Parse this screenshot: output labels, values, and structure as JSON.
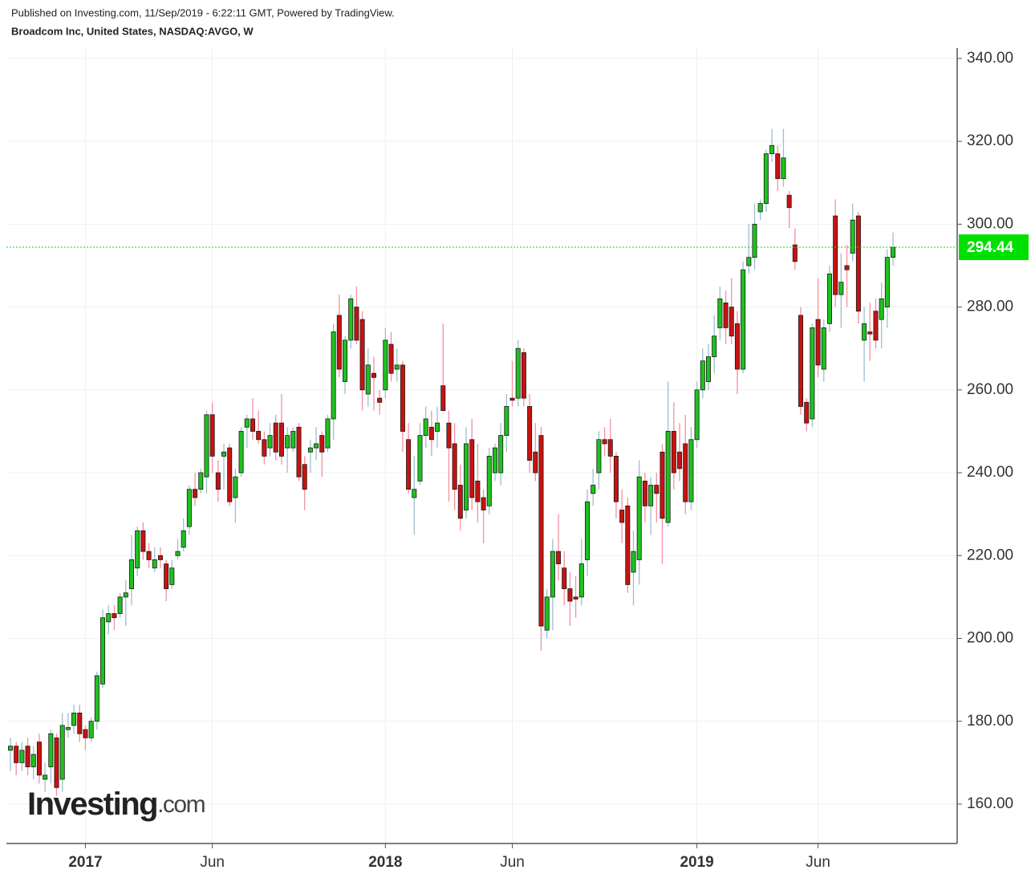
{
  "published": "Published on Investing.com, 11/Sep/2019 - 6:22:11 GMT, Powered by TradingView.",
  "logo": {
    "main": "Investing",
    "suffix": ".com"
  },
  "chart_data": {
    "type": "candlestick",
    "title": "Broadcom Inc, United States, NASDAQ:AVGO, W",
    "categories": [
      null,
      null,
      null,
      null,
      null,
      null,
      null,
      null,
      null,
      null,
      null,
      null,
      null,
      "2017",
      null,
      null,
      null,
      null,
      null,
      null,
      null,
      null,
      null,
      null,
      null,
      null,
      null,
      null,
      null,
      null,
      null,
      null,
      null,
      null,
      null,
      "Jun",
      null,
      null,
      null,
      null,
      null,
      null,
      null,
      null,
      null,
      null,
      null,
      null,
      null,
      null,
      null,
      null,
      null,
      null,
      null,
      null,
      null,
      null,
      null,
      null,
      null,
      null,
      null,
      null,
      null,
      "2018",
      null,
      null,
      null,
      null,
      null,
      null,
      null,
      null,
      null,
      null,
      null,
      null,
      null,
      null,
      null,
      null,
      null,
      null,
      null,
      null,
      null,
      "Jun",
      null,
      null,
      null,
      null,
      null,
      null,
      null,
      null,
      null,
      null,
      null,
      null,
      null,
      null,
      null,
      null,
      null,
      null,
      null,
      null,
      null,
      null,
      null,
      null,
      null,
      null,
      null,
      null,
      null,
      null,
      null,
      "2019",
      null,
      null,
      null,
      null,
      null,
      null,
      null,
      null,
      null,
      null,
      null,
      null,
      null,
      null,
      null,
      null,
      null,
      null,
      null,
      null,
      "Jun",
      null,
      null,
      null,
      null,
      null,
      null,
      null,
      null,
      null,
      null,
      null,
      null,
      null
    ],
    "open": [
      173,
      174,
      170,
      174,
      169,
      175,
      166,
      169,
      176,
      166,
      178,
      179,
      182,
      178,
      176,
      180,
      189,
      204,
      206,
      206,
      210,
      212,
      217,
      226,
      221,
      217,
      220,
      218,
      213,
      220,
      222,
      227,
      236,
      236,
      239,
      254,
      240,
      244,
      246,
      234,
      240,
      251,
      253,
      250,
      248,
      246,
      252,
      252,
      246,
      246,
      251,
      242,
      245,
      246,
      249,
      246,
      253,
      278,
      262,
      272,
      280,
      277,
      259,
      264,
      258,
      260,
      271,
      265,
      266,
      248,
      234,
      238,
      249,
      251,
      250,
      261,
      252,
      247,
      237,
      231,
      248,
      238,
      234,
      232,
      240,
      240,
      249,
      258,
      258,
      269,
      256,
      245,
      249,
      202,
      210,
      221,
      217,
      212,
      210,
      210,
      219,
      235,
      240,
      248,
      248,
      244,
      231,
      232,
      216,
      219,
      238,
      232,
      237,
      245,
      228,
      250,
      245,
      247,
      233,
      248,
      260,
      262,
      268,
      275,
      281,
      280,
      276,
      265,
      290,
      292,
      303,
      305,
      317,
      317,
      311,
      307,
      295,
      278,
      257,
      253,
      277,
      265,
      276,
      302,
      283,
      290,
      293,
      302,
      272,
      274,
      279,
      277,
      280,
      292
    ],
    "high": [
      176,
      175,
      175,
      176,
      174,
      177,
      170,
      178,
      177,
      182,
      182,
      184,
      184,
      179,
      181,
      192,
      207,
      208,
      208,
      211,
      214,
      225,
      227,
      228,
      223,
      222,
      222,
      219,
      219,
      224,
      229,
      237,
      240,
      241,
      255,
      257,
      243,
      247,
      247,
      241,
      251,
      254,
      258,
      255,
      250,
      252,
      254,
      259,
      251,
      251,
      252,
      244,
      248,
      251,
      250,
      254,
      276,
      283,
      273,
      283,
      285,
      279,
      270,
      268,
      260,
      275,
      274,
      270,
      267,
      252,
      244,
      252,
      256,
      255,
      256,
      276,
      255,
      252,
      242,
      251,
      253,
      247,
      236,
      246,
      247,
      252,
      259,
      267,
      272,
      270,
      259,
      252,
      251,
      212,
      224,
      230,
      221,
      216,
      215,
      224,
      236,
      241,
      250,
      251,
      253,
      245,
      236,
      234,
      226,
      243,
      240,
      239,
      240,
      247,
      262,
      257,
      252,
      254,
      251,
      262,
      270,
      271,
      278,
      285,
      284,
      287,
      279,
      291,
      300,
      305,
      306,
      318,
      323,
      319,
      323,
      308,
      299,
      280,
      258,
      276,
      287,
      277,
      290,
      306,
      293,
      295,
      305,
      303,
      280,
      281,
      282,
      286,
      294,
      298
    ],
    "low": [
      168,
      167,
      168,
      167,
      166,
      165,
      163,
      165,
      162,
      163,
      176,
      177,
      175,
      173,
      175,
      178,
      188,
      201,
      202,
      205,
      203,
      208,
      215,
      219,
      217,
      216,
      217,
      209,
      212,
      219,
      221,
      225,
      232,
      235,
      235,
      240,
      233,
      236,
      232,
      228,
      239,
      246,
      248,
      247,
      242,
      244,
      243,
      242,
      240,
      245,
      238,
      231,
      240,
      243,
      239,
      245,
      248,
      263,
      259,
      270,
      271,
      255,
      256,
      255,
      254,
      258,
      262,
      262,
      245,
      235,
      225,
      237,
      246,
      244,
      246,
      255,
      233,
      231,
      226,
      229,
      231,
      228,
      223,
      230,
      238,
      237,
      245,
      256,
      256,
      256,
      240,
      238,
      197,
      200,
      202,
      214,
      208,
      203,
      205,
      208,
      215,
      232,
      236,
      244,
      240,
      229,
      223,
      211,
      208,
      213,
      228,
      225,
      228,
      218,
      227,
      236,
      238,
      230,
      231,
      246,
      258,
      260,
      264,
      272,
      271,
      271,
      259,
      264,
      288,
      289,
      301,
      303,
      315,
      308,
      309,
      299,
      289,
      254,
      250,
      251,
      263,
      262,
      274,
      280,
      275,
      280,
      291,
      276,
      262,
      267,
      270,
      270,
      275,
      290
    ],
    "close": [
      174,
      170,
      173,
      169,
      172,
      167,
      167,
      177,
      164,
      179,
      178.5,
      182,
      177,
      176,
      180,
      191,
      205,
      206,
      205,
      210,
      211,
      219,
      226,
      221,
      219,
      219,
      219,
      212,
      217,
      221,
      226,
      236,
      234,
      240,
      254,
      244,
      236,
      245,
      233,
      239,
      250,
      253,
      250,
      248,
      244,
      249,
      245,
      244,
      249,
      250,
      239,
      236,
      246,
      247,
      245,
      253,
      274,
      265,
      272,
      282,
      272,
      260,
      266,
      263,
      257,
      272,
      264,
      266,
      250,
      236,
      236,
      249,
      253,
      248,
      252,
      255,
      246,
      236,
      229,
      247,
      234,
      233,
      231,
      244,
      246,
      249,
      256,
      257.5,
      270,
      258,
      243,
      240,
      203,
      210,
      221,
      218,
      212,
      209,
      209.5,
      218,
      233,
      237,
      248,
      247,
      244,
      233,
      228,
      213,
      221,
      239,
      232,
      237,
      235,
      229,
      250,
      240,
      241,
      233,
      248,
      260,
      267,
      268,
      273,
      282,
      275,
      273,
      265,
      289,
      292,
      300,
      305,
      317,
      319,
      311,
      316,
      304,
      291,
      256,
      252,
      275,
      266,
      275,
      288,
      283,
      286,
      289,
      301,
      279,
      276,
      273.5,
      272,
      282,
      292,
      294.44
    ],
    "ylim": [
      150.5,
      342.5
    ],
    "yticks": [
      {
        "value": 160,
        "label": "160.00"
      },
      {
        "value": 180,
        "label": "180.00"
      },
      {
        "value": 200,
        "label": "200.00"
      },
      {
        "value": 220,
        "label": "220.00"
      },
      {
        "value": 240,
        "label": "240.00"
      },
      {
        "value": 260,
        "label": "260.00"
      },
      {
        "value": 280,
        "label": "280.00"
      },
      {
        "value": 300,
        "label": "300.00"
      },
      {
        "value": 320,
        "label": "320.00"
      },
      {
        "value": 340,
        "label": "340.00"
      }
    ],
    "last_price": 294.44,
    "grid": true,
    "up_color": "#1ec21e",
    "down_color": "#c8120f",
    "up_wick": "#9dbfcc",
    "down_wick": "#f291a2",
    "price_line_color": "#00e000"
  }
}
